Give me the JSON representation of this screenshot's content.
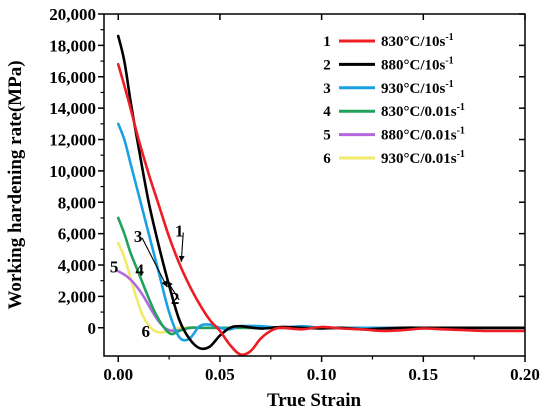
{
  "chart_data": {
    "type": "line",
    "xlabel": "True Strain",
    "ylabel": "Working hardening rate(MPa)",
    "xlim": [
      -0.007,
      0.2
    ],
    "ylim": [
      -1800,
      20000
    ],
    "x_ticks": [
      0.0,
      0.05,
      0.1,
      0.15,
      0.2
    ],
    "x_tick_labels": [
      "0.00",
      "0.05",
      "0.10",
      "0.15",
      "0.20"
    ],
    "y_ticks": [
      0,
      2000,
      4000,
      6000,
      8000,
      10000,
      12000,
      14000,
      16000,
      18000,
      20000
    ],
    "y_tick_labels": [
      "0",
      "2,000",
      "4,000",
      "6,000",
      "8,000",
      "10,000",
      "12,000",
      "14,000",
      "16,000",
      "18,000",
      "20,000"
    ],
    "grid": false,
    "legend_position": "top-right",
    "series": [
      {
        "index": "1",
        "name": "830°C/10s",
        "name_sup": "-1",
        "color": "#ee1c24",
        "x": [
          0.0,
          0.005,
          0.01,
          0.015,
          0.02,
          0.025,
          0.03,
          0.035,
          0.04,
          0.045,
          0.05,
          0.055,
          0.06,
          0.065,
          0.07,
          0.075,
          0.08,
          0.09,
          0.1,
          0.11,
          0.12,
          0.13,
          0.14,
          0.15,
          0.16,
          0.17,
          0.18,
          0.19,
          0.2
        ],
        "y": [
          16800,
          14500,
          12000,
          9800,
          7800,
          5800,
          4100,
          2700,
          1500,
          500,
          -200,
          -1100,
          -1700,
          -1500,
          -700,
          -200,
          0,
          -100,
          50,
          -50,
          -100,
          -200,
          -150,
          -50,
          -100,
          -150,
          -200,
          -200,
          -200
        ]
      },
      {
        "index": "2",
        "name": "880°C/10s",
        "name_sup": "-1",
        "color": "#000000",
        "x": [
          0.0,
          0.003,
          0.006,
          0.01,
          0.015,
          0.02,
          0.025,
          0.03,
          0.035,
          0.04,
          0.045,
          0.05,
          0.055,
          0.06,
          0.07,
          0.08,
          0.09,
          0.1,
          0.11,
          0.12,
          0.13,
          0.14,
          0.15,
          0.16,
          0.18,
          0.2
        ],
        "y": [
          18600,
          17000,
          14500,
          11500,
          8000,
          5200,
          2700,
          500,
          -700,
          -1300,
          -1200,
          -500,
          0,
          100,
          -50,
          50,
          0,
          -50,
          0,
          -100,
          -50,
          0,
          0,
          0,
          0,
          0
        ]
      },
      {
        "index": "3",
        "name": "930°C/10s",
        "name_sup": "-1",
        "color": "#1ba1e2",
        "x": [
          0.0,
          0.003,
          0.006,
          0.01,
          0.015,
          0.02,
          0.025,
          0.03,
          0.035,
          0.04,
          0.045,
          0.05,
          0.055,
          0.06,
          0.07,
          0.08,
          0.09,
          0.1,
          0.11,
          0.12,
          0.13,
          0.15,
          0.17,
          0.2
        ],
        "y": [
          13000,
          12000,
          10500,
          8500,
          6000,
          3500,
          1000,
          -600,
          -700,
          100,
          200,
          0,
          -100,
          100,
          100,
          0,
          100,
          0,
          0,
          0,
          0,
          0,
          0,
          0
        ]
      },
      {
        "index": "4",
        "name": "830°C/0.01s",
        "name_sup": "-1",
        "color": "#1fa35c",
        "x": [
          0.0,
          0.003,
          0.006,
          0.01,
          0.014,
          0.018,
          0.022,
          0.026,
          0.03,
          0.035,
          0.04,
          0.05,
          0.06,
          0.08,
          0.1,
          0.12,
          0.15,
          0.2
        ],
        "y": [
          7000,
          6000,
          4800,
          3500,
          2200,
          1000,
          100,
          -400,
          -200,
          0,
          0,
          0,
          0,
          0,
          0,
          0,
          0,
          0
        ]
      },
      {
        "index": "5",
        "name": "880°C/0.01s",
        "name_sup": "-1",
        "color": "#b567e0",
        "x": [
          0.0,
          0.004,
          0.008,
          0.012,
          0.016,
          0.02,
          0.024,
          0.028,
          0.032,
          0.036,
          0.04,
          0.05,
          0.06,
          0.08,
          0.1,
          0.12,
          0.15,
          0.2
        ],
        "y": [
          3600,
          3300,
          2800,
          2100,
          1200,
          400,
          -100,
          -200,
          -100,
          0,
          0,
          0,
          0,
          0,
          0,
          0,
          0,
          0
        ]
      },
      {
        "index": "6",
        "name": "930°C/0.01s",
        "name_sup": "-1",
        "color": "#f2ea6b",
        "x": [
          0.0,
          0.003,
          0.006,
          0.009,
          0.012,
          0.016,
          0.02,
          0.025,
          0.03,
          0.04,
          0.05,
          0.06,
          0.08,
          0.1,
          0.12,
          0.15,
          0.2
        ],
        "y": [
          5400,
          4500,
          3200,
          1900,
          800,
          0,
          -300,
          -200,
          0,
          0,
          0,
          0,
          0,
          0,
          0,
          0,
          0
        ]
      }
    ],
    "annotations": [
      {
        "text": "1",
        "x": 0.03,
        "y": 6200,
        "arrow_to": [
          0.031,
          4200
        ]
      },
      {
        "text": "2",
        "x": 0.028,
        "y": 1900,
        "arrow_to": [
          0.024,
          3000
        ]
      },
      {
        "text": "3",
        "x": 0.0098,
        "y": 5850,
        "arrow_to": [
          0.024,
          2600
        ]
      },
      {
        "text": "4",
        "x": 0.0105,
        "y": 3700
      },
      {
        "text": "5",
        "x": -0.002,
        "y": 3900
      },
      {
        "text": "6",
        "x": 0.0135,
        "y": -200
      }
    ]
  }
}
